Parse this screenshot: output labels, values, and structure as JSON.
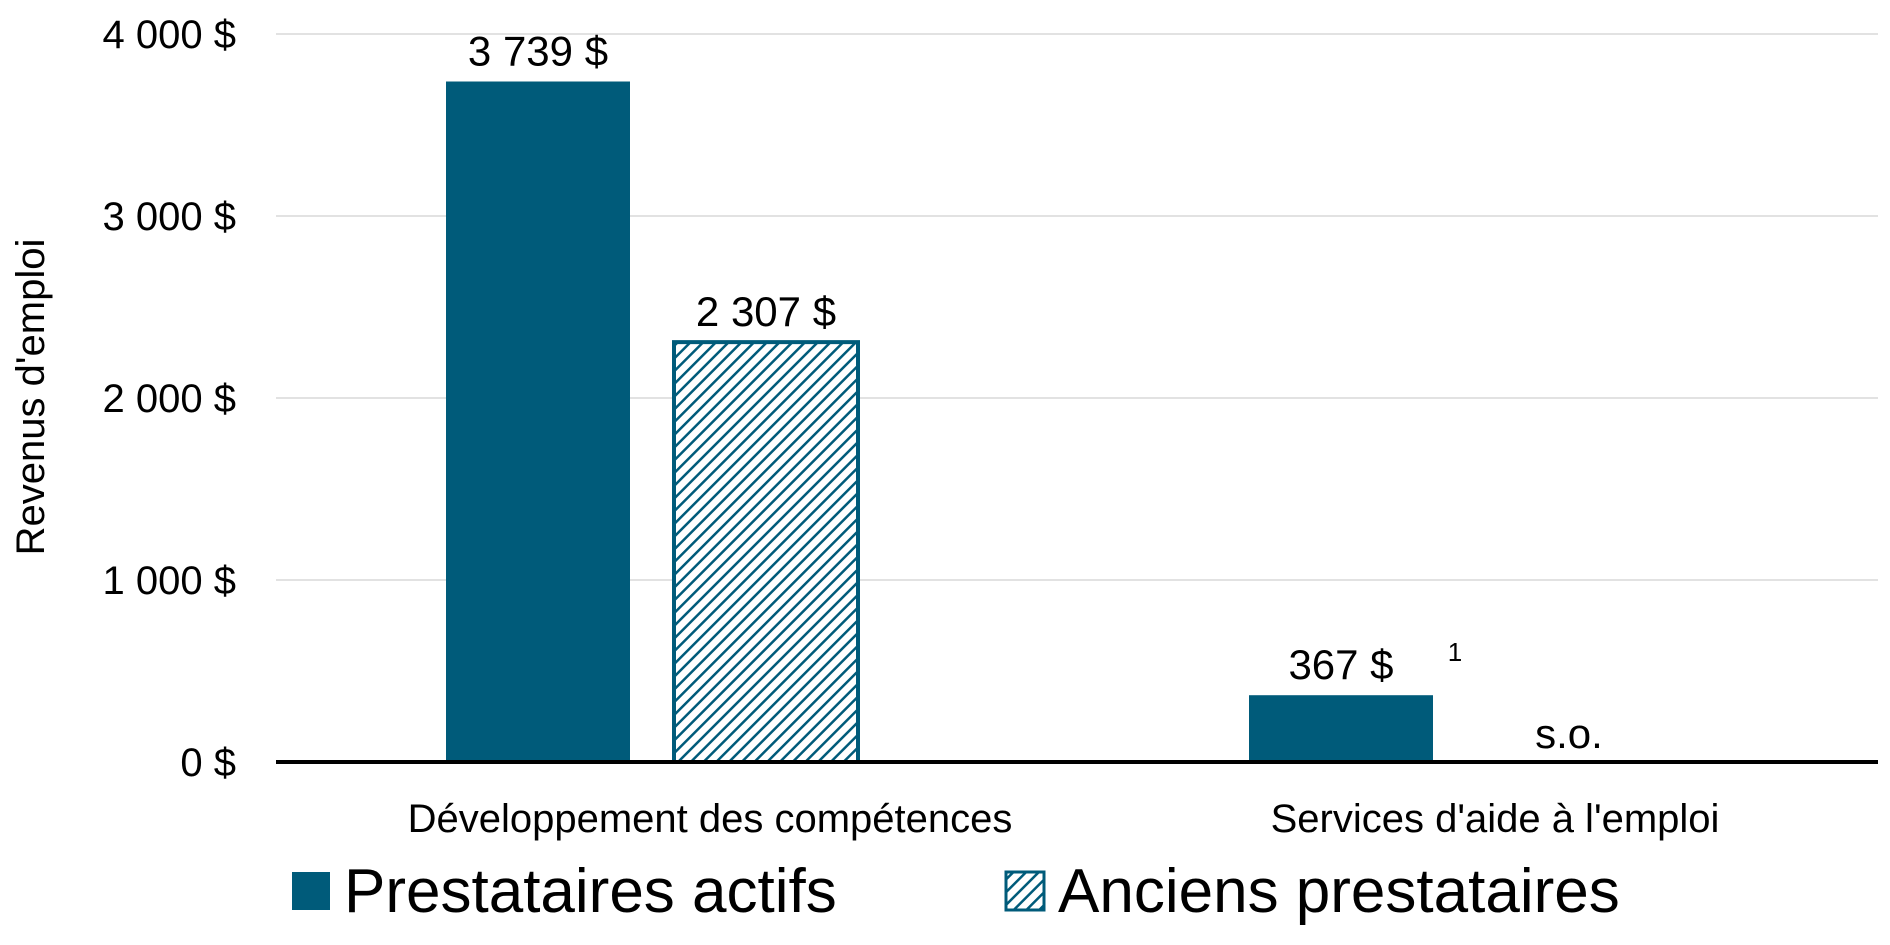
{
  "chart_data": {
    "type": "bar",
    "categories": [
      "Développement des compétences",
      "Services d'aide à l'emploi"
    ],
    "series": [
      {
        "name": "Prestataires actifs",
        "values": [
          3739,
          367
        ],
        "labels": [
          "3 739  $",
          "367  $"
        ],
        "superscripts": [
          "",
          "1"
        ],
        "color": "#005b7a",
        "pattern": "solid"
      },
      {
        "name": "Anciens prestataires",
        "values": [
          2307,
          null
        ],
        "labels": [
          "2 307  $",
          "s.o."
        ],
        "superscripts": [
          "",
          ""
        ],
        "color": "#005b7a",
        "pattern": "diagonal-hatch"
      }
    ],
    "ylabel": "Revenus d'emploi",
    "ylim": [
      0,
      4000
    ],
    "yticks": [
      0,
      1000,
      2000,
      3000,
      4000
    ],
    "ytick_labels": [
      "0 $",
      "1 000 $",
      "2 000 $",
      "3 000 $",
      "4 000 $"
    ],
    "grid": true,
    "legend_position": "bottom"
  }
}
